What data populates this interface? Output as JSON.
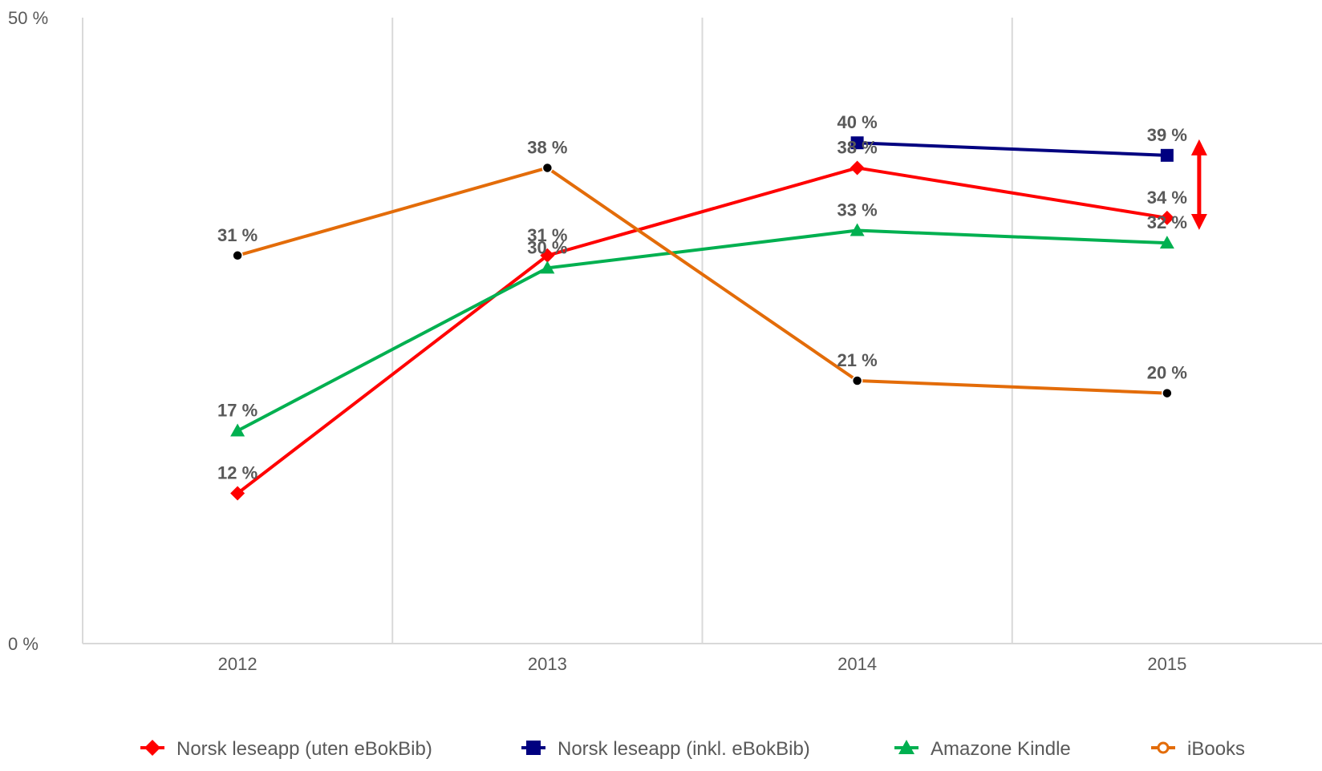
{
  "chart_data": {
    "type": "line",
    "title": "",
    "xlabel": "",
    "ylabel": "",
    "categories": [
      "2012",
      "2013",
      "2014",
      "2015"
    ],
    "ylim": [
      0,
      50
    ],
    "yticks": [
      {
        "value": 0,
        "label": "0 %"
      },
      {
        "value": 50,
        "label": "50 %"
      }
    ],
    "grid": "vertical",
    "legend_position": "bottom",
    "series": [
      {
        "name": "Norsk leseapp (uten eBokBib)",
        "color": "#ff0000",
        "marker": "diamond",
        "values": [
          12,
          31,
          38,
          34
        ],
        "labels": [
          "12 %",
          "31 %",
          "38 %",
          "34 %"
        ]
      },
      {
        "name": "Norsk leseapp (inkl. eBokBib)",
        "color": "#000080",
        "marker": "square",
        "values": [
          null,
          null,
          40,
          39
        ],
        "labels": [
          "",
          "",
          "40 %",
          "39 %"
        ]
      },
      {
        "name": "Amazone Kindle",
        "color": "#00b050",
        "marker": "triangle",
        "values": [
          17,
          30,
          33,
          32
        ],
        "labels": [
          "17 %",
          "30 %",
          "33 %",
          "32 %"
        ]
      },
      {
        "name": "iBooks",
        "color": "#e36c09",
        "marker": "circle",
        "values": [
          31,
          38,
          21,
          20
        ],
        "labels": [
          "31 %",
          "38 %",
          "21 %",
          "20 %"
        ]
      }
    ],
    "annotations": [
      {
        "type": "double-arrow",
        "color": "#ff0000",
        "from": 39,
        "to": 34,
        "position": "right of 2015"
      }
    ]
  }
}
